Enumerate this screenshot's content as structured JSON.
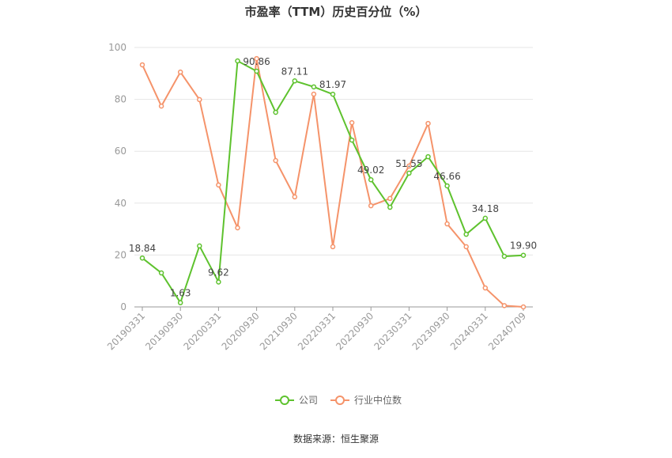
{
  "chart_data": {
    "type": "line",
    "title": "市盈率（TTM）历史百分位（%）",
    "source": "数据来源：恒生聚源",
    "categories": [
      "20190331",
      null,
      "20190930",
      null,
      "20200331",
      null,
      "20200930",
      null,
      "20210930",
      null,
      "20220331",
      null,
      "20220930",
      null,
      "20230331",
      null,
      "20230930",
      null,
      "20240331",
      null,
      "20240709"
    ],
    "series": [
      {
        "name": "公司",
        "color": "#5ec22e",
        "values": [
          18.84,
          13.1,
          1.63,
          23.5,
          9.62,
          94.8,
          90.86,
          75,
          87.11,
          84.8,
          81.97,
          64.3,
          49.02,
          38.4,
          51.55,
          57.9,
          46.66,
          28,
          34.18,
          19.5,
          19.9
        ],
        "value_labels": [
          "18.84",
          null,
          "1.63",
          null,
          "9.62",
          null,
          "90.86",
          null,
          "87.11",
          null,
          "81.97",
          null,
          "49.02",
          null,
          "51.55",
          null,
          "46.66",
          null,
          "34.18",
          null,
          "19.90"
        ]
      },
      {
        "name": "行业中位数",
        "color": "#f5936a",
        "values": [
          93.3,
          77.4,
          90.5,
          79.9,
          47,
          30.5,
          95.7,
          56.4,
          42.4,
          82,
          23.2,
          71,
          39,
          41.8,
          54.3,
          70.7,
          32,
          23.2,
          7.3,
          0.5,
          0
        ]
      }
    ],
    "ylim": [
      0,
      100
    ],
    "yticks": [
      0,
      20,
      40,
      60,
      80,
      100
    ],
    "grid": true,
    "legend": "bottom"
  }
}
